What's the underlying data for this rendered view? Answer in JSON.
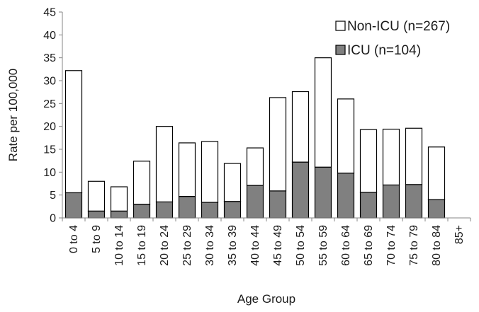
{
  "chart_data": {
    "type": "bar",
    "stacked": true,
    "categories": [
      "0 to 4",
      "5 to 9",
      "10 to 14",
      "15 to 19",
      "20 to 24",
      "25 to 29",
      "30 to 34",
      "35 to 39",
      "40 to 44",
      "45 to 49",
      "50 to 54",
      "55 to 59",
      "60 to 64",
      "65 to 69",
      "70 to 74",
      "75 to 79",
      "80 to 84",
      "85+"
    ],
    "series": [
      {
        "name": "ICU (n=104)",
        "color": "#808080",
        "values": [
          5.5,
          1.5,
          1.5,
          3,
          3.5,
          4.7,
          3.4,
          3.6,
          7.1,
          5.9,
          12.2,
          11.1,
          9.8,
          5.6,
          7.2,
          7.3,
          4,
          0
        ]
      },
      {
        "name": "Non-ICU (n=267)",
        "color": "#ffffff",
        "values": [
          26.7,
          6.5,
          5.3,
          9.4,
          16.5,
          11.7,
          13.3,
          8.3,
          8.2,
          20.4,
          15.4,
          23.9,
          16.2,
          13.7,
          12.2,
          12.3,
          11.5,
          0
        ]
      }
    ],
    "totals": [
      32.2,
      8,
      6.8,
      12.4,
      20,
      16.4,
      16.7,
      11.9,
      15.3,
      26.3,
      27.6,
      35,
      26,
      19.3,
      19.4,
      19.6,
      15.5,
      0
    ],
    "ylim": [
      0,
      45
    ],
    "yticks": [
      0,
      5,
      10,
      15,
      20,
      25,
      30,
      35,
      40,
      45
    ],
    "xlabel": "Age Group",
    "ylabel": "Rate per 100,000",
    "legend_position": "top-right",
    "grid": false,
    "colors": {
      "axis": "#868686",
      "bar_outline": "#000000"
    }
  }
}
